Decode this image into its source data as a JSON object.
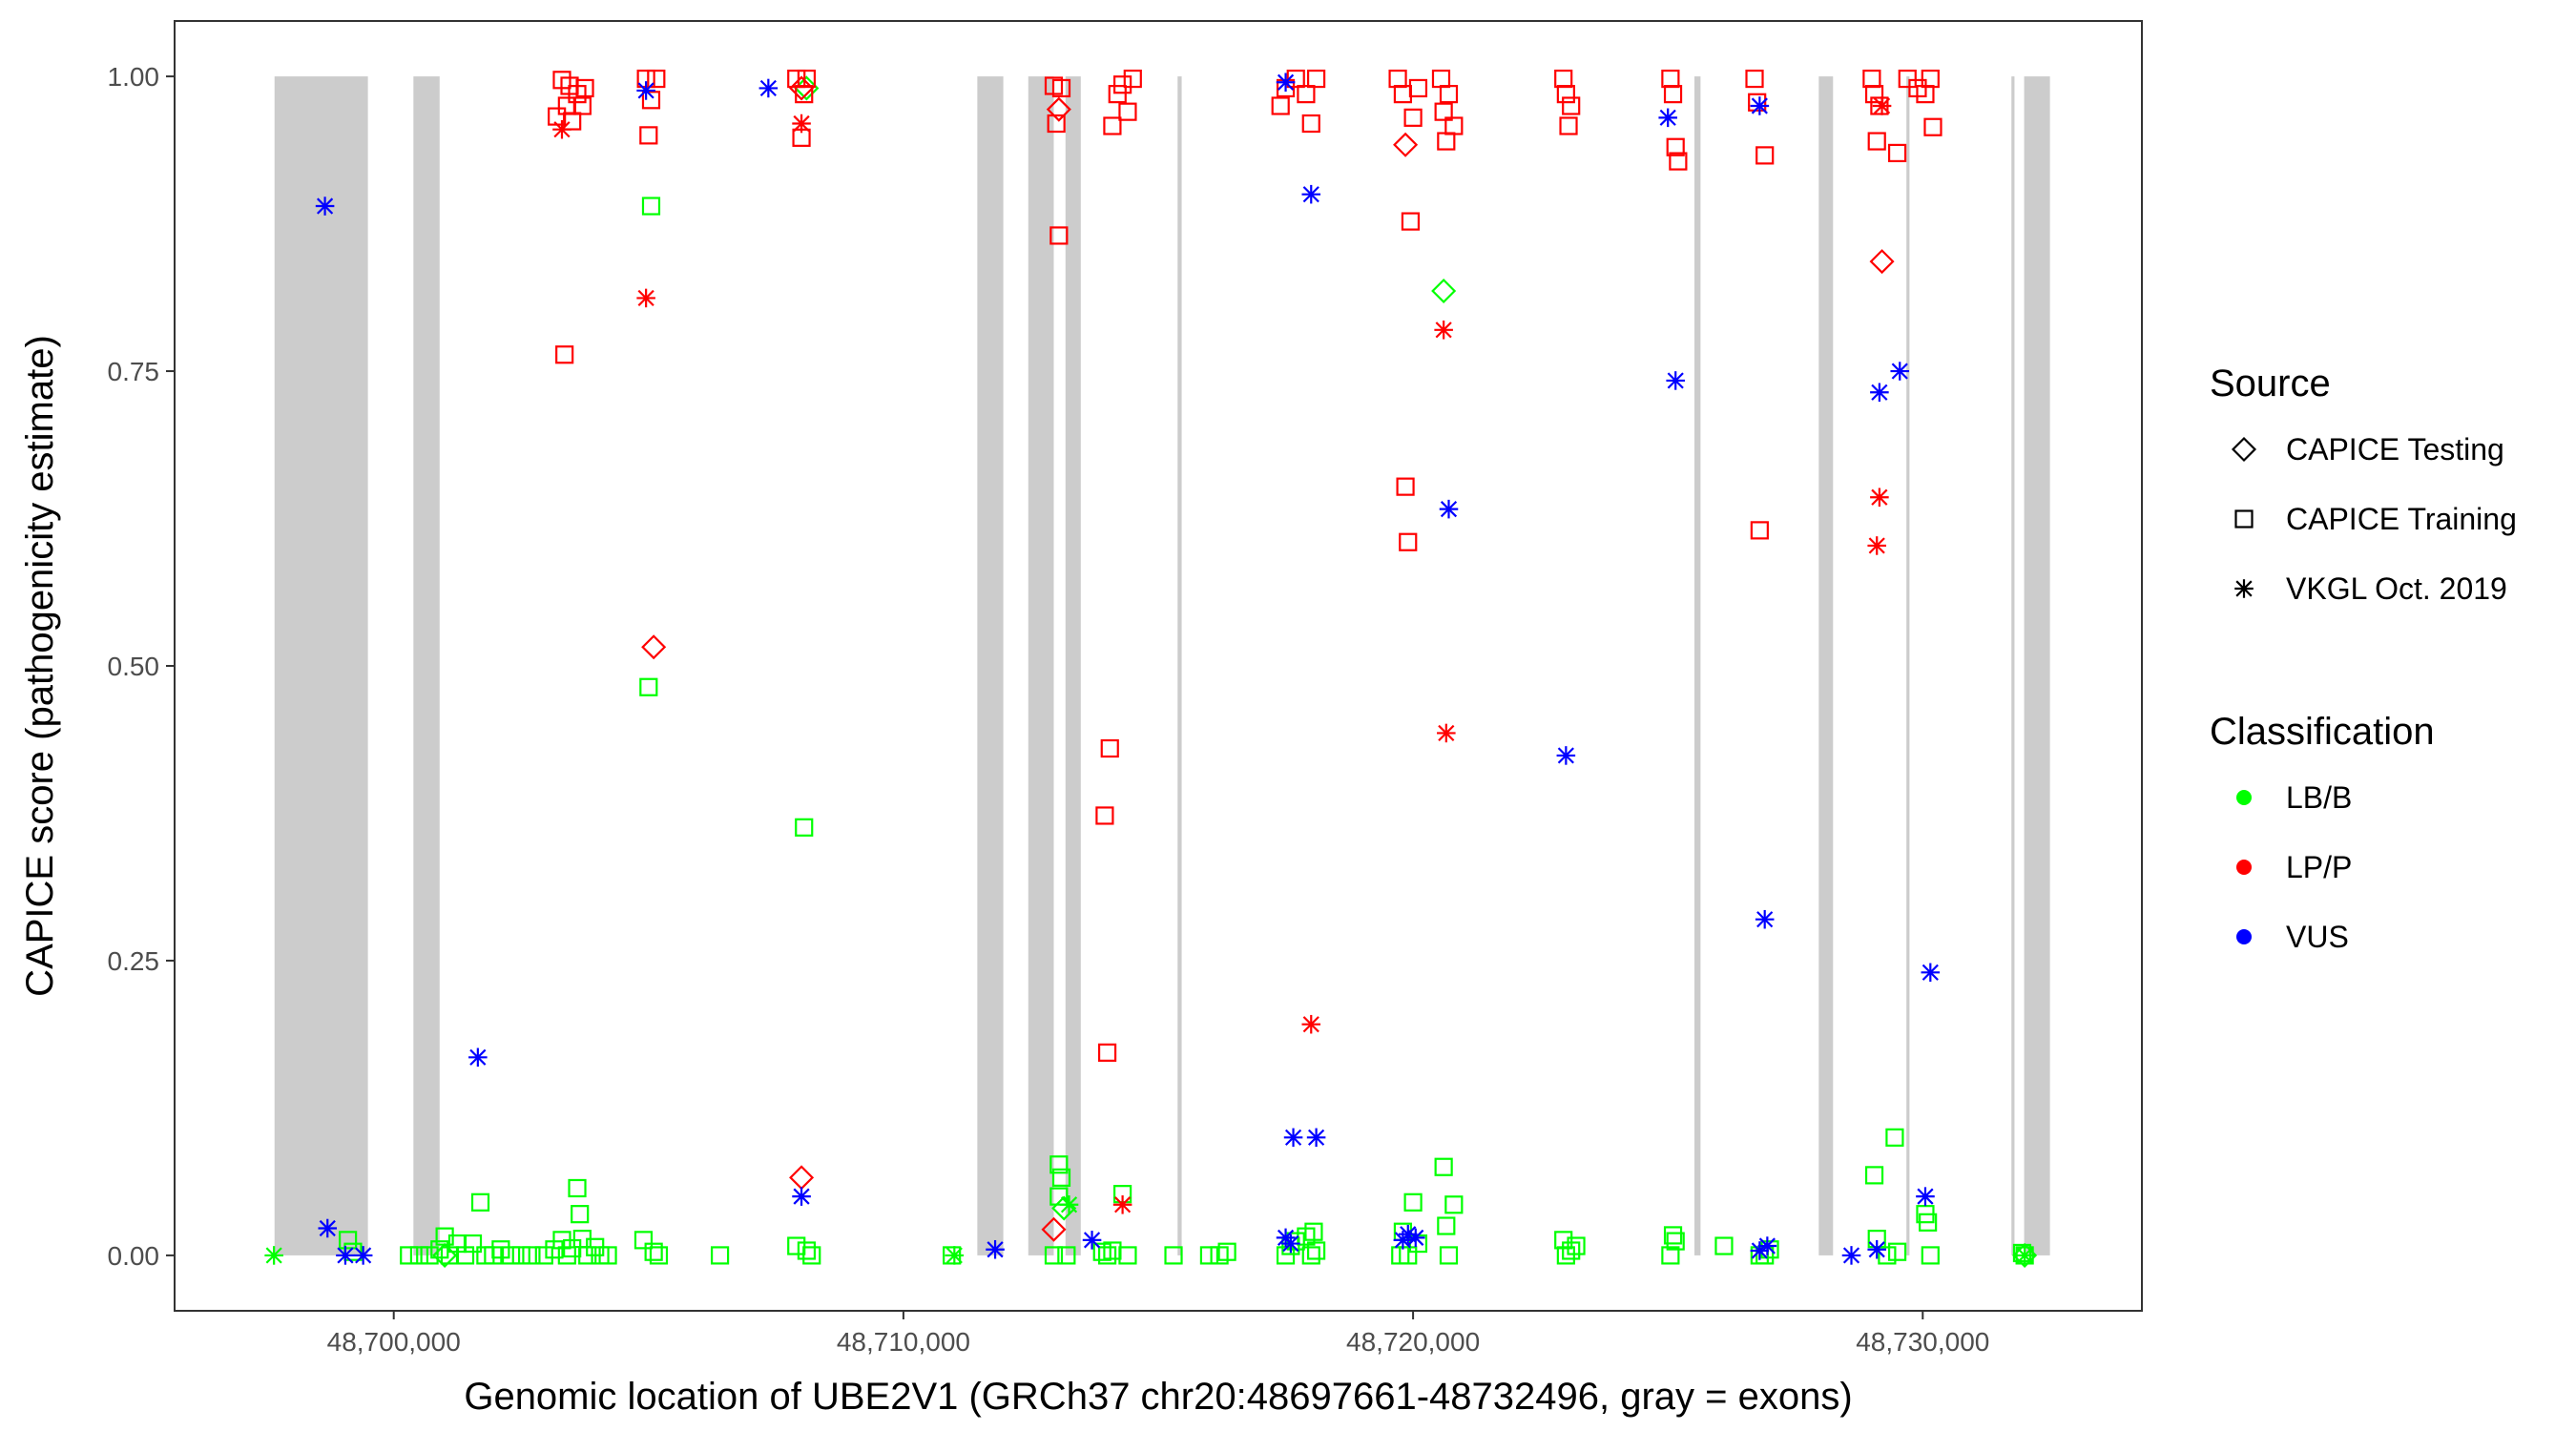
{
  "chart_data": {
    "type": "scatter",
    "title": "",
    "xlabel": "Genomic location of UBE2V1 (GRCh37 chr20:48697661-48732496, gray = exons)",
    "ylabel": "CAPICE score (pathogenicity estimate)",
    "xlim": [
      48695700,
      48734300
    ],
    "ylim": [
      -0.047,
      1.047
    ],
    "x_ticks": [
      {
        "value": 48700000,
        "label": "48,700,000"
      },
      {
        "value": 48710000,
        "label": "48,710,000"
      },
      {
        "value": 48720000,
        "label": "48,720,000"
      },
      {
        "value": 48730000,
        "label": "48,730,000"
      }
    ],
    "y_ticks": [
      {
        "value": 0,
        "label": "0.00"
      },
      {
        "value": 0.25,
        "label": "0.25"
      },
      {
        "value": 0.5,
        "label": "0.50"
      },
      {
        "value": 0.75,
        "label": "0.75"
      },
      {
        "value": 1,
        "label": "1.00"
      }
    ],
    "grid": false,
    "exons": [
      [
        48697661,
        48699493
      ],
      [
        48700386,
        48700900
      ],
      [
        48711450,
        48711960
      ],
      [
        48712450,
        48712950
      ],
      [
        48713180,
        48713480
      ],
      [
        48715380,
        48715460
      ],
      [
        48725520,
        48725640
      ],
      [
        48727960,
        48728240
      ],
      [
        48729680,
        48729740
      ],
      [
        48731740,
        48731800
      ],
      [
        48731990,
        48732496
      ]
    ],
    "legend": {
      "position": "right",
      "source_title": "Source",
      "source_items": [
        {
          "label": "CAPICE Testing",
          "shape": "diamond"
        },
        {
          "label": "CAPICE Training",
          "shape": "square"
        },
        {
          "label": "VKGL Oct. 2019",
          "shape": "asterisk"
        }
      ],
      "class_title": "Classification",
      "class_items": [
        {
          "label": "LB/B",
          "color": "#00ff00"
        },
        {
          "label": "LP/P",
          "color": "#ff0000"
        },
        {
          "label": "VUS",
          "color": "#0000ff"
        }
      ]
    },
    "colors": {
      "LB/B": "#00ff00",
      "LP/P": "#ff0000",
      "VUS": "#0000ff",
      "exon": "#cccccc"
    },
    "series": [
      {
        "source": "CAPICE Testing",
        "shape": "diamond",
        "class": "LB/B",
        "points": [
          [
            48701000,
            0
          ],
          [
            48708100,
            0.99
          ],
          [
            48720600,
            0.818
          ],
          [
            48713150,
            0.04
          ],
          [
            48732000,
            0
          ]
        ]
      },
      {
        "source": "CAPICE Testing",
        "shape": "diamond",
        "class": "LP/P",
        "points": [
          [
            48705100,
            0.516
          ],
          [
            48708000,
            0.066
          ],
          [
            48712950,
            0.022
          ],
          [
            48713050,
            0.972
          ],
          [
            48719850,
            0.942
          ],
          [
            48729200,
            0.843
          ],
          [
            48708000,
            0.99
          ]
        ]
      },
      {
        "source": "CAPICE Training",
        "shape": "square",
        "class": "LB/B",
        "points": [
          [
            48699100,
            0.013
          ],
          [
            48699200,
            0.003
          ],
          [
            48700300,
            0
          ],
          [
            48700500,
            0
          ],
          [
            48700700,
            0
          ],
          [
            48700900,
            0.005
          ],
          [
            48701000,
            0.016
          ],
          [
            48701100,
            0
          ],
          [
            48701250,
            0.01
          ],
          [
            48701400,
            0
          ],
          [
            48701550,
            0.01
          ],
          [
            48701700,
            0.045
          ],
          [
            48701800,
            0
          ],
          [
            48701950,
            0
          ],
          [
            48702100,
            0.005
          ],
          [
            48702300,
            0
          ],
          [
            48702500,
            0
          ],
          [
            48702700,
            0
          ],
          [
            48702950,
            0
          ],
          [
            48703150,
            0.005
          ],
          [
            48703300,
            0.013
          ],
          [
            48703400,
            0
          ],
          [
            48703500,
            0.006
          ],
          [
            48703600,
            0.057
          ],
          [
            48703650,
            0.035
          ],
          [
            48703700,
            0.014
          ],
          [
            48703800,
            0
          ],
          [
            48703950,
            0.007
          ],
          [
            48704050,
            0
          ],
          [
            48704200,
            0
          ],
          [
            48704900,
            0.013
          ],
          [
            48705000,
            0.482
          ],
          [
            48705050,
            0.89
          ],
          [
            48705100,
            0.003
          ],
          [
            48705200,
            0
          ],
          [
            48706400,
            0
          ],
          [
            48707900,
            0.008
          ],
          [
            48708050,
            0.363
          ],
          [
            48708100,
            0.004
          ],
          [
            48708200,
            0
          ],
          [
            48710950,
            0
          ],
          [
            48712950,
            0
          ],
          [
            48713050,
            0.077
          ],
          [
            48713100,
            0.066
          ],
          [
            48713050,
            0.05
          ],
          [
            48713200,
            0
          ],
          [
            48713900,
            0.003
          ],
          [
            48714000,
            0
          ],
          [
            48714100,
            0.004
          ],
          [
            48714300,
            0.052
          ],
          [
            48714400,
            0
          ],
          [
            48715300,
            0
          ],
          [
            48716000,
            0
          ],
          [
            48716200,
            0
          ],
          [
            48716350,
            0.003
          ],
          [
            48717500,
            0
          ],
          [
            48717600,
            0.008
          ],
          [
            48717700,
            0.012
          ],
          [
            48717900,
            0.016
          ],
          [
            48718000,
            0
          ],
          [
            48718050,
            0.02
          ],
          [
            48718100,
            0.004
          ],
          [
            48719750,
            0
          ],
          [
            48719800,
            0.02
          ],
          [
            48719900,
            0
          ],
          [
            48720000,
            0.045
          ],
          [
            48720100,
            0.01
          ],
          [
            48720600,
            0.075
          ],
          [
            48720650,
            0.025
          ],
          [
            48720800,
            0.043
          ],
          [
            48720700,
            0
          ],
          [
            48722950,
            0.013
          ],
          [
            48723000,
            0
          ],
          [
            48723100,
            0.004
          ],
          [
            48723200,
            0.008
          ],
          [
            48725050,
            0
          ],
          [
            48725100,
            0.017
          ],
          [
            48725150,
            0.012
          ],
          [
            48726100,
            0.008
          ],
          [
            48726800,
            0
          ],
          [
            48726900,
            0
          ],
          [
            48727000,
            0.005
          ],
          [
            48729050,
            0.068
          ],
          [
            48729100,
            0.014
          ],
          [
            48729300,
            0
          ],
          [
            48729450,
            0.1
          ],
          [
            48729500,
            0.003
          ],
          [
            48730050,
            0.035
          ],
          [
            48730100,
            0.028
          ],
          [
            48730150,
            0
          ],
          [
            48731950,
            0.002
          ],
          [
            48732000,
            0
          ]
        ]
      },
      {
        "source": "CAPICE Training",
        "shape": "square",
        "class": "LP/P",
        "points": [
          [
            48703200,
            0.966
          ],
          [
            48703300,
            0.997
          ],
          [
            48703350,
            0.764
          ],
          [
            48703400,
            0.975
          ],
          [
            48703450,
            0.992
          ],
          [
            48703500,
            0.962
          ],
          [
            48703600,
            0.985
          ],
          [
            48703700,
            0.975
          ],
          [
            48703750,
            0.99
          ],
          [
            48704950,
            0.998
          ],
          [
            48705000,
            0.95
          ],
          [
            48705050,
            0.98
          ],
          [
            48705150,
            0.998
          ],
          [
            48707900,
            0.998
          ],
          [
            48708000,
            0.948
          ],
          [
            48708050,
            0.985
          ],
          [
            48708100,
            0.998
          ],
          [
            48712950,
            0.992
          ],
          [
            48713000,
            0.96
          ],
          [
            48713050,
            0.865
          ],
          [
            48713100,
            0.99
          ],
          [
            48713950,
            0.373
          ],
          [
            48714000,
            0.172
          ],
          [
            48714050,
            0.43
          ],
          [
            48714100,
            0.958
          ],
          [
            48714200,
            0.985
          ],
          [
            48714300,
            0.993
          ],
          [
            48714400,
            0.97
          ],
          [
            48714500,
            0.998
          ],
          [
            48717400,
            0.975
          ],
          [
            48717500,
            0.99
          ],
          [
            48717700,
            0.998
          ],
          [
            48717900,
            0.985
          ],
          [
            48718000,
            0.96
          ],
          [
            48718100,
            0.998
          ],
          [
            48719700,
            0.998
          ],
          [
            48719800,
            0.985
          ],
          [
            48719850,
            0.652
          ],
          [
            48719900,
            0.605
          ],
          [
            48719950,
            0.877
          ],
          [
            48720000,
            0.965
          ],
          [
            48720100,
            0.99
          ],
          [
            48720550,
            0.998
          ],
          [
            48720600,
            0.97
          ],
          [
            48720650,
            0.945
          ],
          [
            48720700,
            0.985
          ],
          [
            48720800,
            0.958
          ],
          [
            48722950,
            0.998
          ],
          [
            48723000,
            0.985
          ],
          [
            48723050,
            0.958
          ],
          [
            48723100,
            0.975
          ],
          [
            48725050,
            0.998
          ],
          [
            48725100,
            0.985
          ],
          [
            48725150,
            0.94
          ],
          [
            48725200,
            0.928
          ],
          [
            48726700,
            0.998
          ],
          [
            48726750,
            0.978
          ],
          [
            48726800,
            0.615
          ],
          [
            48726900,
            0.933
          ],
          [
            48729000,
            0.998
          ],
          [
            48729050,
            0.985
          ],
          [
            48729100,
            0.945
          ],
          [
            48729150,
            0.975
          ],
          [
            48729500,
            0.935
          ],
          [
            48729700,
            0.998
          ],
          [
            48729900,
            0.99
          ],
          [
            48730050,
            0.985
          ],
          [
            48730150,
            0.998
          ],
          [
            48730200,
            0.957
          ]
        ]
      },
      {
        "source": "VKGL Oct. 2019",
        "shape": "asterisk",
        "class": "LB/B",
        "points": [
          [
            48697650,
            0
          ],
          [
            48711000,
            0
          ],
          [
            48713250,
            0.043
          ],
          [
            48732000,
            0
          ]
        ]
      },
      {
        "source": "VKGL Oct. 2019",
        "shape": "asterisk",
        "class": "LP/P",
        "points": [
          [
            48703300,
            0.955
          ],
          [
            48704950,
            0.812
          ],
          [
            48708000,
            0.96
          ],
          [
            48714300,
            0.043
          ],
          [
            48718000,
            0.196
          ],
          [
            48720600,
            0.785
          ],
          [
            48720650,
            0.443
          ],
          [
            48729150,
            0.643
          ],
          [
            48729100,
            0.602
          ],
          [
            48729200,
            0.975
          ]
        ]
      },
      {
        "source": "VKGL Oct. 2019",
        "shape": "asterisk",
        "class": "VUS",
        "points": [
          [
            48698650,
            0.89
          ],
          [
            48698700,
            0.023
          ],
          [
            48699050,
            0
          ],
          [
            48699400,
            0
          ],
          [
            48701650,
            0.168
          ],
          [
            48704950,
            0.988
          ],
          [
            48707350,
            0.99
          ],
          [
            48708000,
            0.05
          ],
          [
            48711800,
            0.005
          ],
          [
            48713700,
            0.013
          ],
          [
            48717500,
            0.015
          ],
          [
            48717600,
            0.01
          ],
          [
            48717650,
            0.1
          ],
          [
            48718000,
            0.9
          ],
          [
            48718100,
            0.1
          ],
          [
            48717500,
            0.995
          ],
          [
            48719800,
            0.013
          ],
          [
            48719900,
            0.018
          ],
          [
            48720050,
            0.015
          ],
          [
            48720700,
            0.633
          ],
          [
            48723000,
            0.424
          ],
          [
            48725000,
            0.965
          ],
          [
            48725150,
            0.742
          ],
          [
            48726800,
            0.975
          ],
          [
            48726900,
            0.285
          ],
          [
            48726950,
            0.008
          ],
          [
            48726800,
            0.004
          ],
          [
            48728600,
            0
          ],
          [
            48729100,
            0.005
          ],
          [
            48729150,
            0.732
          ],
          [
            48729550,
            0.75
          ],
          [
            48730050,
            0.05
          ],
          [
            48730150,
            0.24
          ]
        ]
      }
    ]
  }
}
